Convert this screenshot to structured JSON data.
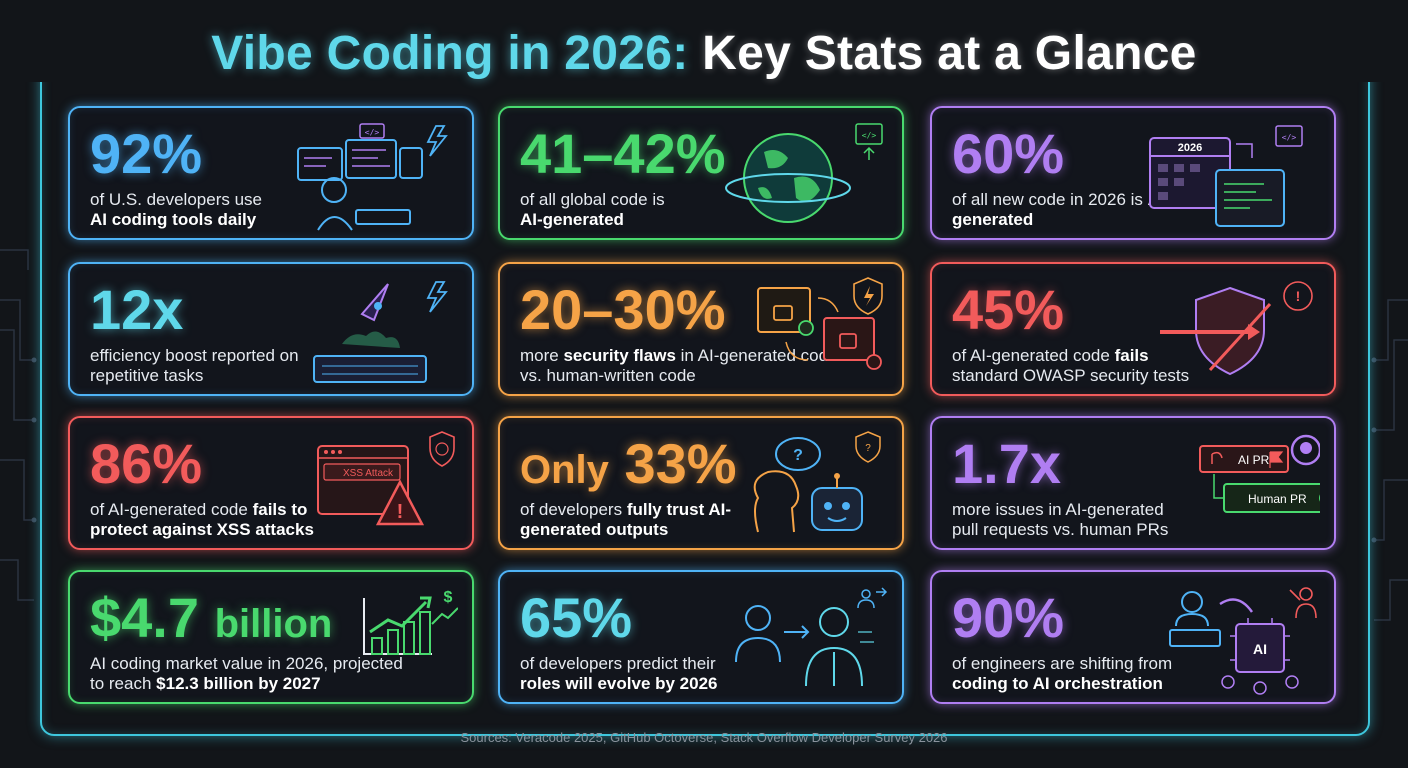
{
  "title": {
    "part1": "Vibe Coding in 2026:",
    "part2": "Key Stats at a Glance"
  },
  "accent_colors": {
    "cyan": "#5fd8ea",
    "blue": "#4fb3f6",
    "green": "#49d96e",
    "purple": "#b07ef2",
    "orange": "#f5a347",
    "red": "#f25b5b"
  },
  "cards": [
    {
      "stat": "92%",
      "desc_pre": "of U.S. developers use",
      "desc_bold": "AI coding tools daily",
      "desc_post": "",
      "icons": [
        "developer-monitors-icon",
        "lightning-icon",
        "code-icon"
      ]
    },
    {
      "stat": "41–42%",
      "desc_pre": "of all global code is",
      "desc_bold": "AI-generated",
      "desc_post": "",
      "icons": [
        "globe-icon",
        "code-upload-icon"
      ]
    },
    {
      "stat": "60%",
      "desc_pre": "of all new code in 2026 is",
      "desc_bold": "AI-generated",
      "desc_post": "",
      "calendar_label": "2026",
      "icons": [
        "calendar-icon",
        "code-window-icon"
      ]
    },
    {
      "stat": "12x",
      "desc_pre": "efficiency boost reported on repetitive tasks",
      "desc_bold": "",
      "desc_post": "",
      "icons": [
        "rocket-icon",
        "keyboard-icon",
        "lightning-icon"
      ]
    },
    {
      "stat": "20–30%",
      "desc_pre": "more",
      "desc_bold": "security flaws",
      "desc_post": "in AI-generated code vs. human-written code",
      "icons": [
        "lock-window-icon",
        "shield-lightning-icon"
      ]
    },
    {
      "stat": "45%",
      "desc_pre": "of AI-generated code",
      "desc_bold": "fails",
      "desc_post": "standard OWASP security tests",
      "icons": [
        "pierced-shield-icon",
        "warning-icon"
      ]
    },
    {
      "stat": "86%",
      "desc_pre": "of AI-generated code",
      "desc_bold": "fails to protect against XSS attacks",
      "desc_post": "",
      "attack_label": "XSS Attack",
      "icons": [
        "browser-alert-icon",
        "warning-triangle-icon",
        "shield-globe-icon"
      ]
    },
    {
      "stat_pre": "Only",
      "stat": "33%",
      "desc_pre": "of developers",
      "desc_bold": "fully trust AI-generated outputs",
      "desc_post": "",
      "icons": [
        "human-head-icon",
        "robot-icon",
        "question-bubble-icon",
        "handshake-icon"
      ]
    },
    {
      "stat": "1.7x",
      "desc_pre": "more issues in AI-generated pull requests vs. human PRs",
      "desc_bold": "",
      "desc_post": "",
      "pr_ai": "AI PR",
      "pr_human": "Human PR",
      "icons": [
        "github-icon",
        "pull-request-icon",
        "flag-icon",
        "check-icon"
      ]
    },
    {
      "stat": "$4.7",
      "stat_suffix": "billion",
      "desc_pre": "AI coding market value in 2026, projected to reach",
      "desc_bold": "$12.3 billion by 2027",
      "desc_post": "",
      "icons": [
        "bar-chart-growth-icon",
        "dollar-arrow-icon"
      ]
    },
    {
      "stat": "65%",
      "desc_pre": "of developers predict their",
      "desc_bold": "roles will evolve by 2026",
      "desc_post": "",
      "icons": [
        "person-icon",
        "digital-person-icon",
        "team-arrow-icon"
      ]
    },
    {
      "stat": "90%",
      "desc_pre": "of engineers are shifting from",
      "desc_bold": "coding to AI orchestration",
      "desc_post": "",
      "chip_label": "AI",
      "icons": [
        "coder-icon",
        "ai-chip-icon",
        "presenter-icon"
      ]
    }
  ],
  "sources": "Sources: Veracode 2025, GitHub Octoverse, Stack Overflow Developer Survey 2026"
}
